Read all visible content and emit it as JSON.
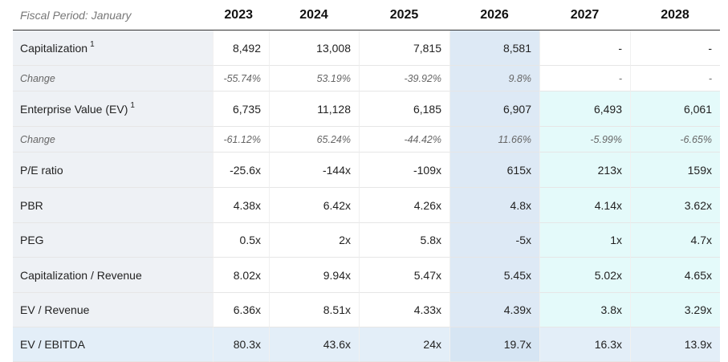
{
  "header": {
    "title": "Fiscal Period: January",
    "years": [
      "2023",
      "2024",
      "2025",
      "2026",
      "2027",
      "2028"
    ]
  },
  "rows": [
    {
      "label": "Capitalization",
      "note": "1",
      "values": [
        "8,492",
        "13,008",
        "7,815",
        "8,581",
        "-",
        "-"
      ]
    },
    {
      "label": "Change",
      "values": [
        "-55.74%",
        "53.19%",
        "-39.92%",
        "9.8%",
        "-",
        "-"
      ]
    },
    {
      "label": "Enterprise Value (EV)",
      "note": "1",
      "values": [
        "6,735",
        "11,128",
        "6,185",
        "6,907",
        "6,493",
        "6,061"
      ]
    },
    {
      "label": "Change",
      "values": [
        "-61.12%",
        "65.24%",
        "-44.42%",
        "11.66%",
        "-5.99%",
        "-6.65%"
      ]
    },
    {
      "label": "P/E ratio",
      "values": [
        "-25.6x",
        "-144x",
        "-109x",
        "615x",
        "213x",
        "159x"
      ]
    },
    {
      "label": "PBR",
      "values": [
        "4.38x",
        "6.42x",
        "4.26x",
        "4.8x",
        "4.14x",
        "3.62x"
      ]
    },
    {
      "label": "PEG",
      "values": [
        "0.5x",
        "2x",
        "5.8x",
        "-5x",
        "1x",
        "4.7x"
      ]
    },
    {
      "label": "Capitalization / Revenue",
      "values": [
        "8.02x",
        "9.94x",
        "5.47x",
        "5.45x",
        "5.02x",
        "4.65x"
      ]
    },
    {
      "label": "EV / Revenue",
      "values": [
        "6.36x",
        "8.51x",
        "4.33x",
        "4.39x",
        "3.8x",
        "3.29x"
      ]
    },
    {
      "label": "EV / EBITDA",
      "values": [
        "80.3x",
        "43.6x",
        "24x",
        "19.7x",
        "16.3x",
        "13.9x"
      ]
    }
  ]
}
